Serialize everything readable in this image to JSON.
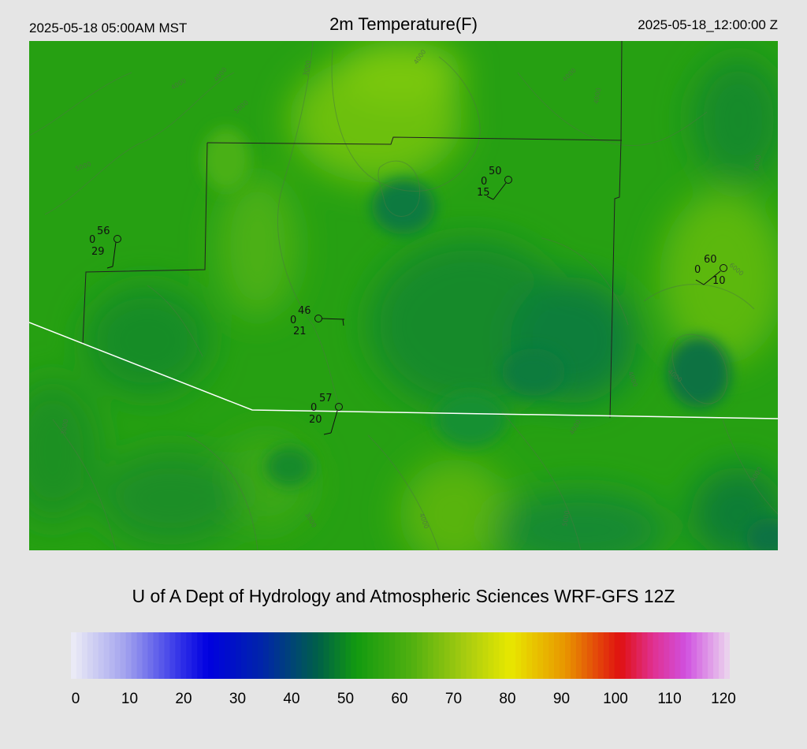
{
  "header": {
    "local_time": "2025-05-18 05:00AM MST",
    "title": "2m Temperature(F)",
    "valid_time": "2025-05-18_12:00:00 Z"
  },
  "map": {
    "field": "2m Temperature(F)",
    "contour_labels": [
      "3000",
      "4000",
      "4000",
      "4000",
      "4000",
      "4000",
      "5000",
      "5000",
      "6000",
      "6000",
      "4000",
      "4000",
      "3000",
      "3000",
      "4000",
      "4000",
      "4000",
      "5000"
    ],
    "stations": [
      {
        "temp": "56",
        "wind": "0",
        "dew": "29"
      },
      {
        "temp": "50",
        "wind": "0",
        "dew": "15"
      },
      {
        "temp": "60",
        "wind": "0",
        "dew": "10"
      },
      {
        "temp": "46",
        "wind": "0",
        "dew": "21"
      },
      {
        "temp": "57",
        "wind": "0",
        "dew": "20"
      }
    ]
  },
  "footer": {
    "credit": "U of A Dept of Hydrology and Atmospheric Sciences WRF-GFS 12Z"
  },
  "colorbar": {
    "min": 0,
    "max": 120,
    "tick_labels": [
      "0",
      "10",
      "20",
      "30",
      "40",
      "50",
      "60",
      "70",
      "80",
      "90",
      "100",
      "110",
      "120"
    ],
    "stops": [
      {
        "value": 0,
        "color": "#eeeef6"
      },
      {
        "value": 10,
        "color": "#a2a2ee"
      },
      {
        "value": 20,
        "color": "#3030e8"
      },
      {
        "value": 25,
        "color": "#0000e0"
      },
      {
        "value": 35,
        "color": "#0026a8"
      },
      {
        "value": 45,
        "color": "#006048"
      },
      {
        "value": 52,
        "color": "#129a10"
      },
      {
        "value": 62,
        "color": "#50b010"
      },
      {
        "value": 72,
        "color": "#a8cc10"
      },
      {
        "value": 80,
        "color": "#e8e800"
      },
      {
        "value": 90,
        "color": "#e89600"
      },
      {
        "value": 100,
        "color": "#e01010"
      },
      {
        "value": 106,
        "color": "#e03090"
      },
      {
        "value": 112,
        "color": "#d050e0"
      },
      {
        "value": 120,
        "color": "#ecd8ee"
      }
    ]
  },
  "colors": {
    "map_base": "#26a012",
    "dark_green": "#0e7d40",
    "light_green": "#6cc010",
    "state_border": "#ffffff",
    "county_border": "#222222",
    "background": "#e5e5e5"
  }
}
